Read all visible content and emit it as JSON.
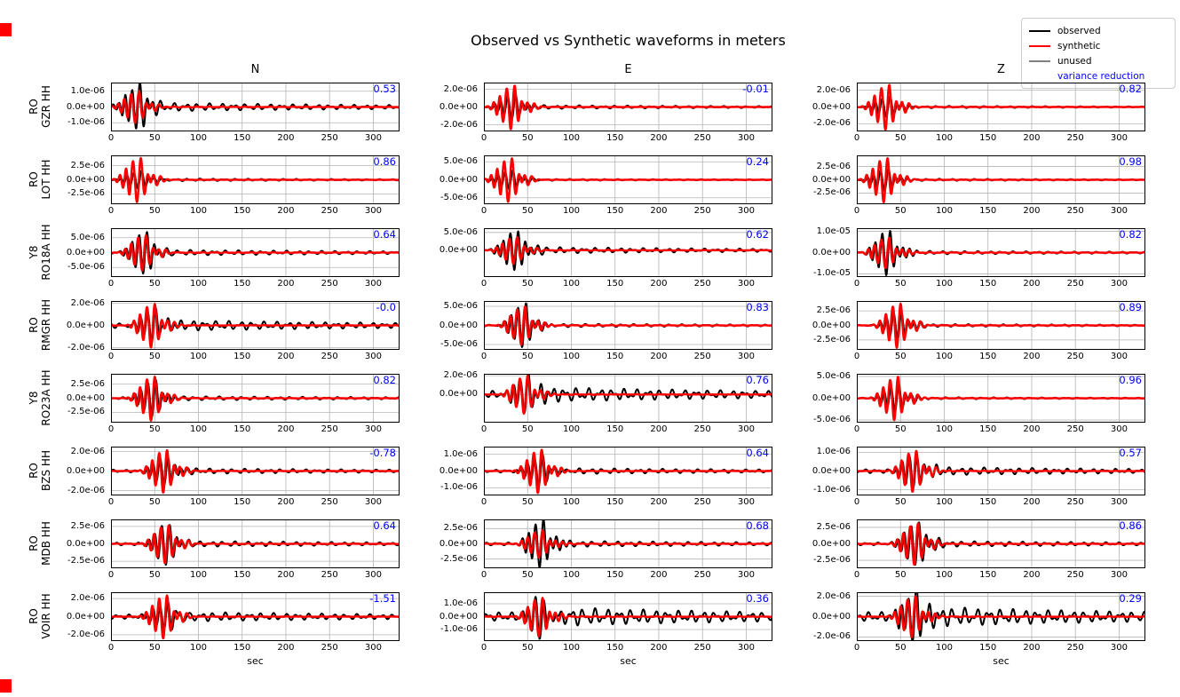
{
  "title": "Observed vs Synthetic waveforms in meters",
  "columns": [
    "N",
    "E",
    "Z"
  ],
  "xlabel": "sec",
  "legend": {
    "items": [
      {
        "label": "observed",
        "color": "#000000",
        "line": true
      },
      {
        "label": "synthetic",
        "color": "#ff0000",
        "line": true
      },
      {
        "label": "unused",
        "color": "#808080",
        "line": true
      },
      {
        "label": "variance reduction",
        "color": "#0000ff",
        "line": false
      }
    ]
  },
  "colors": {
    "vr_text": "#0000ff",
    "grid": "#b4b4b4",
    "observed": "#000000",
    "synthetic": "#ff0000"
  },
  "chart_data": {
    "type": "line",
    "title": "Observed vs Synthetic waveforms in meters",
    "xlabel": "sec",
    "x_range": [
      0,
      330
    ],
    "x_ticks": [
      0,
      50,
      100,
      150,
      200,
      250,
      300
    ],
    "grid": true,
    "legend_position": "top-right",
    "series_meaning": "each panel overlays observed (black) and synthetic (red) displacement waveforms; blue number is variance reduction",
    "rows": [
      {
        "network": "RO",
        "station": "GZR HH"
      },
      {
        "network": "RO",
        "station": "LOT HH"
      },
      {
        "network": "Y8",
        "station": "RO18A HH"
      },
      {
        "network": "RO",
        "station": "RMGR HH"
      },
      {
        "network": "Y8",
        "station": "RO23A HH"
      },
      {
        "network": "RO",
        "station": "BZS HH"
      },
      {
        "network": "RO",
        "station": "MDB HH"
      },
      {
        "network": "RO",
        "station": "VOIR HH"
      }
    ],
    "panels": [
      {
        "row": 0,
        "comp": "N",
        "vr": "0.53",
        "c": 30,
        "obs_amp": 1.45e-06,
        "syn_amp": 1.05e-06,
        "coda": 0.12,
        "ylim": [
          -1.55e-06,
          1.55e-06
        ],
        "yticks": [
          {
            "v": 1e-06,
            "label": "1.0e-06"
          },
          {
            "v": 0,
            "label": "0.0e+00"
          },
          {
            "v": -1e-06,
            "label": "-1.0e-06"
          }
        ]
      },
      {
        "row": 0,
        "comp": "E",
        "vr": "-0.01",
        "c": 33,
        "obs_amp": 1.5e-06,
        "syn_amp": 2.6e-06,
        "coda": 0.09,
        "ylim": [
          -2.75e-06,
          2.75e-06
        ],
        "yticks": [
          {
            "v": 2e-06,
            "label": "2.0e-06"
          },
          {
            "v": 0,
            "label": "0.0e+00"
          },
          {
            "v": -2e-06,
            "label": "-2.0e-06"
          }
        ]
      },
      {
        "row": 0,
        "comp": "Z",
        "vr": "0.82",
        "c": 35,
        "obs_amp": 1.3e-06,
        "syn_amp": 2.8e-06,
        "coda": 0.07,
        "ylim": [
          -2.9e-06,
          2.9e-06
        ],
        "yticks": [
          {
            "v": 2e-06,
            "label": "2.0e-06"
          },
          {
            "v": 0,
            "label": "0.0e+00"
          },
          {
            "v": -2e-06,
            "label": "-2.0e-06"
          }
        ]
      },
      {
        "row": 1,
        "comp": "N",
        "vr": "0.86",
        "c": 32,
        "obs_amp": 1.7e-06,
        "syn_amp": 4.1e-06,
        "coda": 0.09,
        "ylim": [
          -4.3e-06,
          4.3e-06
        ],
        "yticks": [
          {
            "v": 2.5e-06,
            "label": "2.5e-06"
          },
          {
            "v": 0,
            "label": "0.0e+00"
          },
          {
            "v": -2.5e-06,
            "label": "-2.5e-06"
          }
        ]
      },
      {
        "row": 1,
        "comp": "E",
        "vr": "0.24",
        "c": 30,
        "obs_amp": 2.8e-06,
        "syn_amp": 6.4e-06,
        "coda": 0.06,
        "ylim": [
          -6.8e-06,
          6.8e-06
        ],
        "yticks": [
          {
            "v": 5e-06,
            "label": "5.0e-06"
          },
          {
            "v": 0,
            "label": "0.0e+00"
          },
          {
            "v": -5e-06,
            "label": "-5.0e-06"
          }
        ]
      },
      {
        "row": 1,
        "comp": "Z",
        "vr": "0.98",
        "c": 33,
        "obs_amp": 2.2e-06,
        "syn_amp": 4.4e-06,
        "coda": 0.06,
        "ylim": [
          -4.6e-06,
          4.6e-06
        ],
        "yticks": [
          {
            "v": 2.5e-06,
            "label": "2.5e-06"
          },
          {
            "v": 0,
            "label": "0.0e+00"
          },
          {
            "v": -2.5e-06,
            "label": "-2.5e-06"
          }
        ]
      },
      {
        "row": 2,
        "comp": "N",
        "vr": "0.64",
        "c": 38,
        "obs_amp": 7.8e-06,
        "syn_amp": 6.3e-06,
        "coda": 0.08,
        "ylim": [
          -8.2e-06,
          8.2e-06
        ],
        "yticks": [
          {
            "v": 5e-06,
            "label": "5.0e-06"
          },
          {
            "v": 0,
            "label": "0.0e+00"
          },
          {
            "v": -5e-06,
            "label": "-5.0e-06"
          }
        ]
      },
      {
        "row": 2,
        "comp": "E",
        "vr": "0.62",
        "c": 36,
        "obs_amp": 5.8e-06,
        "syn_amp": 4e-06,
        "coda": 0.1,
        "ylim": [
          -7.5e-06,
          6.2e-06
        ],
        "yticks": [
          {
            "v": 5e-06,
            "label": "5.0e-06"
          },
          {
            "v": 0,
            "label": "0.0e+00"
          }
        ]
      },
      {
        "row": 2,
        "comp": "Z",
        "vr": "0.82",
        "c": 35,
        "obs_amp": 1.1e-05,
        "syn_amp": 7.5e-06,
        "coda": 0.05,
        "ylim": [
          -1.15e-05,
          1.15e-05
        ],
        "yticks": [
          {
            "v": 1e-05,
            "label": "1.0e-05"
          },
          {
            "v": 0,
            "label": "0.0e+00"
          },
          {
            "v": -1e-05,
            "label": "-1.0e-05"
          }
        ]
      },
      {
        "row": 3,
        "comp": "N",
        "vr": "-0.0",
        "c": 48,
        "obs_amp": 1.55e-06,
        "syn_amp": 2.05e-06,
        "coda": 0.2,
        "ylim": [
          -2.2e-06,
          2.2e-06
        ],
        "yticks": [
          {
            "v": 2e-06,
            "label": "2.0e-06"
          },
          {
            "v": 0,
            "label": "0.0e+00"
          },
          {
            "v": -2e-06,
            "label": "-2.0e-06"
          }
        ]
      },
      {
        "row": 3,
        "comp": "E",
        "vr": "0.83",
        "c": 45,
        "obs_amp": 6e-06,
        "syn_amp": 5.2e-06,
        "coda": 0.05,
        "ylim": [
          -6.4e-06,
          6.4e-06
        ],
        "yticks": [
          {
            "v": 5e-06,
            "label": "5.0e-06"
          },
          {
            "v": 0,
            "label": "0.0e+00"
          },
          {
            "v": -5e-06,
            "label": "-5.0e-06"
          }
        ]
      },
      {
        "row": 3,
        "comp": "Z",
        "vr": "0.89",
        "c": 48,
        "obs_amp": 2.6e-06,
        "syn_amp": 4e-06,
        "coda": 0.06,
        "ylim": [
          -4.2e-06,
          4.2e-06
        ],
        "yticks": [
          {
            "v": 2.5e-06,
            "label": "2.5e-06"
          },
          {
            "v": 0,
            "label": "0.0e+00"
          },
          {
            "v": -2.5e-06,
            "label": "-2.5e-06"
          }
        ]
      },
      {
        "row": 4,
        "comp": "N",
        "vr": "0.82",
        "c": 48,
        "obs_amp": 3.4e-06,
        "syn_amp": 4.1e-06,
        "coda": 0.07,
        "ylim": [
          -4.3e-06,
          4.3e-06
        ],
        "yticks": [
          {
            "v": 2.5e-06,
            "label": "2.5e-06"
          },
          {
            "v": 0,
            "label": "0.0e+00"
          },
          {
            "v": -2.5e-06,
            "label": "-2.5e-06"
          }
        ]
      },
      {
        "row": 4,
        "comp": "E",
        "vr": "0.76",
        "c": 48,
        "obs_amp": 1.8e-06,
        "syn_amp": 2.1e-06,
        "coda": 0.28,
        "ylim": [
          -3e-06,
          2.2e-06
        ],
        "yticks": [
          {
            "v": 2e-06,
            "label": "2.0e-06"
          },
          {
            "v": 0,
            "label": "0.0e+00"
          }
        ]
      },
      {
        "row": 4,
        "comp": "Z",
        "vr": "0.96",
        "c": 45,
        "obs_amp": 3.2e-06,
        "syn_amp": 5.2e-06,
        "coda": 0.05,
        "ylim": [
          -5.6e-06,
          5.6e-06
        ],
        "yticks": [
          {
            "v": 5e-06,
            "label": "5.0e-06"
          },
          {
            "v": 0,
            "label": "0.0e+00"
          },
          {
            "v": -5e-06,
            "label": "-5.0e-06"
          }
        ]
      },
      {
        "row": 5,
        "comp": "N",
        "vr": "-0.78",
        "c": 62,
        "obs_amp": 1.5e-06,
        "syn_amp": 2.3e-06,
        "coda": 0.12,
        "ylim": [
          -2.5e-06,
          2.5e-06
        ],
        "yticks": [
          {
            "v": 2e-06,
            "label": "2.0e-06"
          },
          {
            "v": 0,
            "label": "0.0e+00"
          },
          {
            "v": -2e-06,
            "label": "-2.0e-06"
          }
        ]
      },
      {
        "row": 5,
        "comp": "E",
        "vr": "0.64",
        "c": 64,
        "obs_amp": 9.5e-07,
        "syn_amp": 1.35e-06,
        "coda": 0.12,
        "ylim": [
          -1.45e-06,
          1.45e-06
        ],
        "yticks": [
          {
            "v": 1e-06,
            "label": "1.0e-06"
          },
          {
            "v": 0,
            "label": "0.0e+00"
          },
          {
            "v": -1e-06,
            "label": "-1.0e-06"
          }
        ]
      },
      {
        "row": 5,
        "comp": "Z",
        "vr": "0.57",
        "c": 66,
        "obs_amp": 1e-06,
        "syn_amp": 1.15e-06,
        "coda": 0.14,
        "ylim": [
          -1.3e-06,
          1.3e-06
        ],
        "yticks": [
          {
            "v": 1e-06,
            "label": "1.0e-06"
          },
          {
            "v": 0,
            "label": "0.0e+00"
          },
          {
            "v": -1e-06,
            "label": "-1.0e-06"
          }
        ]
      },
      {
        "row": 6,
        "comp": "N",
        "vr": "0.64",
        "c": 64,
        "obs_amp": 3.3e-06,
        "syn_amp": 2.9e-06,
        "coda": 0.08,
        "ylim": [
          -3.5e-06,
          3.5e-06
        ],
        "yticks": [
          {
            "v": 2.5e-06,
            "label": "2.5e-06"
          },
          {
            "v": 0,
            "label": "0.0e+00"
          },
          {
            "v": -2.5e-06,
            "label": "-2.5e-06"
          }
        ]
      },
      {
        "row": 6,
        "comp": "E",
        "vr": "0.68",
        "c": 65,
        "obs_amp": 3.9e-06,
        "syn_amp": 2.3e-06,
        "coda": 0.08,
        "ylim": [
          -4e-06,
          4e-06
        ],
        "yticks": [
          {
            "v": 2.5e-06,
            "label": "2.5e-06"
          },
          {
            "v": 0,
            "label": "0.0e+00"
          },
          {
            "v": -2.5e-06,
            "label": "-2.5e-06"
          }
        ]
      },
      {
        "row": 6,
        "comp": "Z",
        "vr": "0.86",
        "c": 68,
        "obs_amp": 3.4e-06,
        "syn_amp": 3.3e-06,
        "coda": 0.08,
        "ylim": [
          -3.7e-06,
          3.7e-06
        ],
        "yticks": [
          {
            "v": 2.5e-06,
            "label": "2.5e-06"
          },
          {
            "v": 0,
            "label": "0.0e+00"
          },
          {
            "v": -2.5e-06,
            "label": "-2.5e-06"
          }
        ]
      },
      {
        "row": 7,
        "comp": "N",
        "vr": "-1.51",
        "c": 62,
        "obs_amp": 1.7e-06,
        "syn_amp": 2.5e-06,
        "coda": 0.2,
        "ylim": [
          -2.7e-06,
          2.7e-06
        ],
        "yticks": [
          {
            "v": 2e-06,
            "label": "2.0e-06"
          },
          {
            "v": 0,
            "label": "0.0e+00"
          },
          {
            "v": -2e-06,
            "label": "-2.0e-06"
          }
        ]
      },
      {
        "row": 7,
        "comp": "E",
        "vr": "0.36",
        "c": 65,
        "obs_amp": 1.85e-06,
        "syn_amp": 1.6e-06,
        "coda": 0.25,
        "ylim": [
          -1.9e-06,
          1.9e-06
        ],
        "yticks": [
          {
            "v": 1e-06,
            "label": "1.0e-06"
          },
          {
            "v": 0,
            "label": "0.0e+00"
          },
          {
            "v": -1e-06,
            "label": "-1.0e-06"
          }
        ]
      },
      {
        "row": 7,
        "comp": "Z",
        "vr": "0.29",
        "c": 65,
        "obs_amp": 2.2e-06,
        "syn_amp": 2.1e-06,
        "coda": 0.28,
        "ylim": [
          -2.4e-06,
          2.4e-06
        ],
        "yticks": [
          {
            "v": 2e-06,
            "label": "2.0e-06"
          },
          {
            "v": 0,
            "label": "0.0e+00"
          },
          {
            "v": -2e-06,
            "label": "-2.0e-06"
          }
        ]
      }
    ]
  }
}
